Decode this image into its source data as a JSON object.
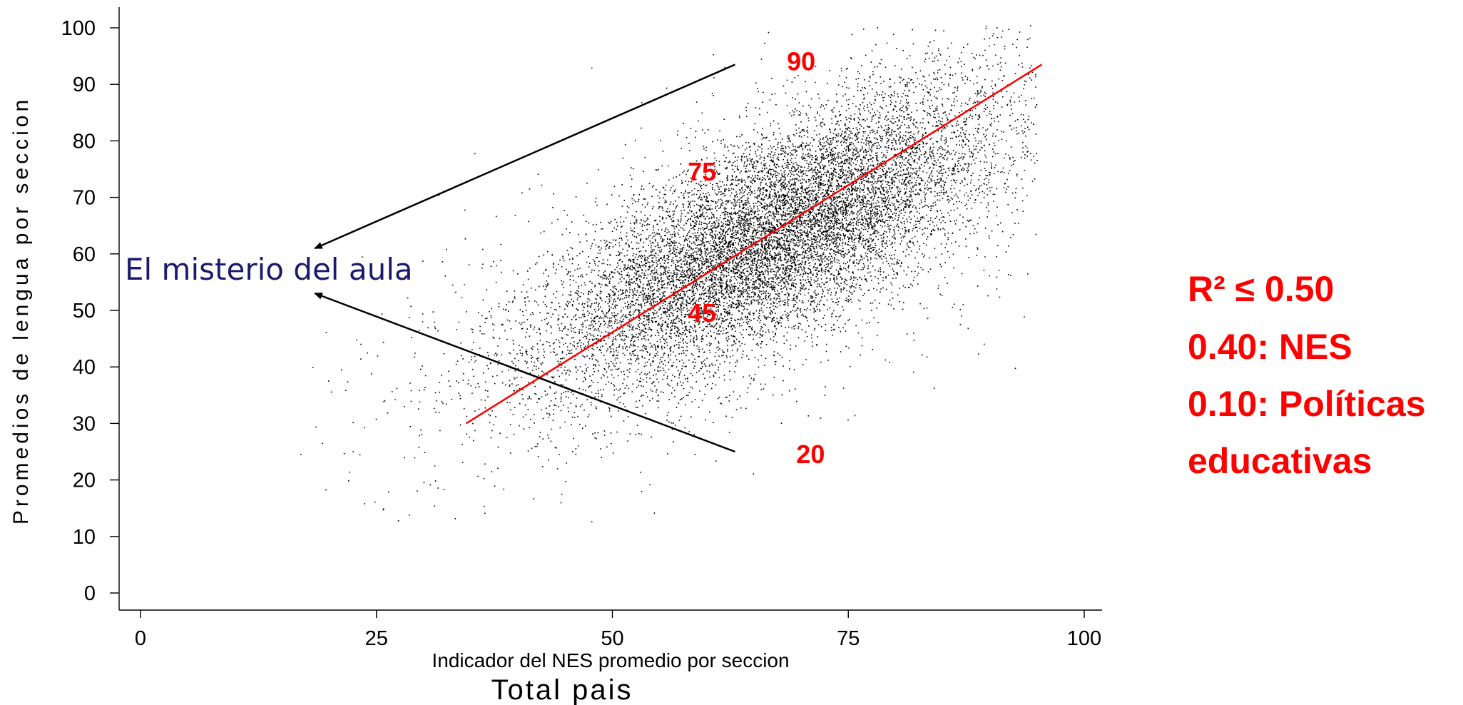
{
  "chart_data": {
    "type": "scatter",
    "xlabel": "Indicador del NES promedio por seccion",
    "ylabel": "Promedios de lengua por seccion",
    "caption": "Total pais",
    "xlim": [
      -2,
      102
    ],
    "ylim": [
      -3,
      104
    ],
    "xticks": [
      0,
      25,
      50,
      75,
      100
    ],
    "yticks": [
      0,
      10,
      20,
      30,
      40,
      50,
      60,
      70,
      80,
      90,
      100
    ],
    "grid": false,
    "scatter_cloud": {
      "center_x": 67,
      "center_y": 63,
      "sd_x": 12,
      "sd_y": 13,
      "correlation": 0.72,
      "n_points": 13000,
      "color": "#000000"
    },
    "fit_line": {
      "x": [
        34.5,
        95.5
      ],
      "y": [
        30,
        93.5
      ],
      "color": "#ff0000"
    },
    "arrows": [
      {
        "from": [
          63,
          93.5
        ],
        "to": [
          18.5,
          61
        ]
      },
      {
        "from": [
          63,
          25
        ],
        "to": [
          18.5,
          53
        ]
      }
    ],
    "annotations": [
      {
        "text": "90",
        "x": 70,
        "y": 92.5
      },
      {
        "text": "75",
        "x": 59.5,
        "y": 73
      },
      {
        "text": "45",
        "x": 59.5,
        "y": 48
      },
      {
        "text": "20",
        "x": 71,
        "y": 23
      }
    ],
    "mystery_label": "El misterio del aula",
    "stats": [
      "R² ≤ 0.50",
      "0.40: NES",
      "0.10: Políticas",
      "educativas"
    ]
  },
  "colors": {
    "accent": "#ff0000",
    "mystery": "#1a1a6e",
    "points": "#000000"
  }
}
